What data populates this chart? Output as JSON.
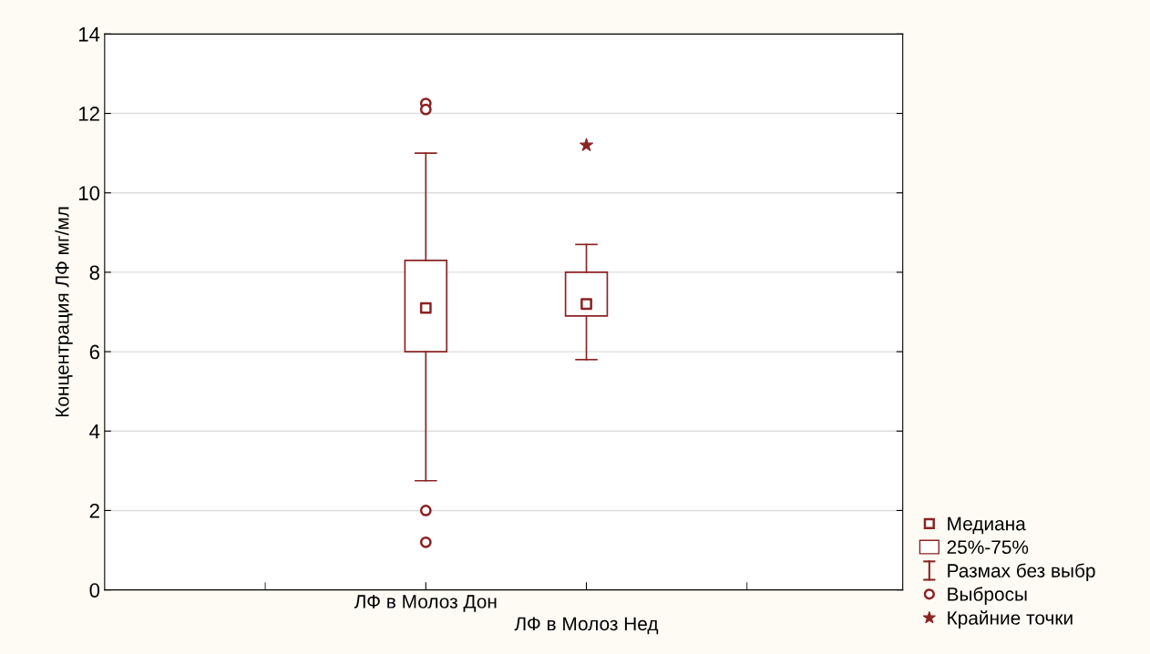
{
  "chart_data": {
    "type": "box",
    "ylabel": "Концентрация ЛФ мг/мл",
    "categories": [
      "ЛФ в Молоз Дон",
      "ЛФ в Молоз Нед"
    ],
    "ylim": [
      0,
      14
    ],
    "yticks": [
      0,
      2,
      4,
      6,
      8,
      10,
      12,
      14
    ],
    "grid": "y",
    "legend": "bottom right",
    "annotations": [
      "Медиана",
      "25%-75%",
      "Размах без выбр"
    ],
    "series": [
      {
        "color": "#8b2323",
        "boxes": [
          {
            "low": 2.75,
            "q1": 6.0,
            "median": 7.1,
            "q3": 8.3,
            "high": 11.0
          },
          {
            "low": 5.8,
            "q1": 6.9,
            "median": 7.2,
            "q3": 8.0,
            "high": 8.7
          }
        ]
      },
      {
        "type": "scatter",
        "name": "Выбросы",
        "color": "#8b2323",
        "marker": "circle",
        "x": [
          "ЛФ в Молоз Дон",
          "ЛФ в Молоз Дон",
          "ЛФ в Молоз Дон",
          "ЛФ в Молоз Дон"
        ],
        "values": [
          12.25,
          12.1,
          2.0,
          1.2
        ]
      },
      {
        "type": "scatter",
        "name": "Крайние точки",
        "color": "#8b2323",
        "marker": "star",
        "x": [
          "ЛФ в Молоз Нед"
        ],
        "values": [
          11.2
        ]
      }
    ]
  }
}
